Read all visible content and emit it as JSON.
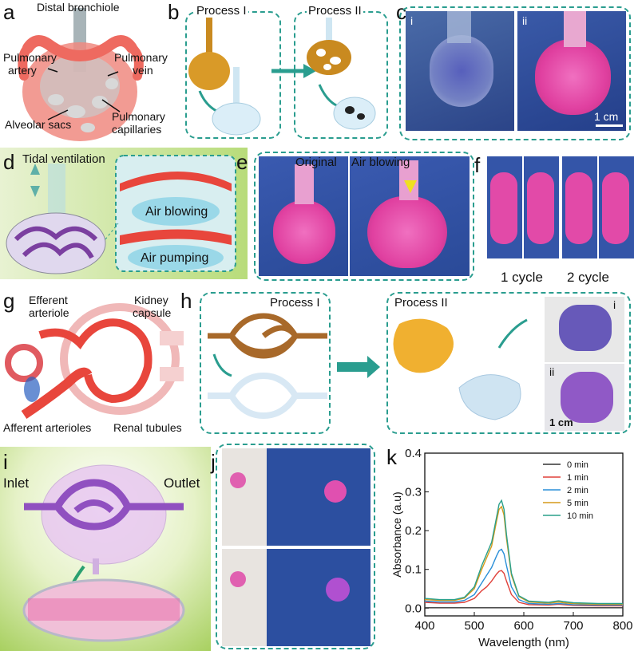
{
  "panels": {
    "a": {
      "letter": "a",
      "labels": {
        "distal_bronchiole": "Distal bronchiole",
        "pulmonary_artery_1": "Pulmonary",
        "pulmonary_artery_2": "artery",
        "pulmonary_vein_1": "Pulmonary",
        "pulmonary_vein_2": "vein",
        "alveolar_sacs": "Alveolar sacs",
        "pulmonary_capillaries_1": "Pulmonary",
        "pulmonary_capillaries_2": "capillaries"
      }
    },
    "b": {
      "letter": "b",
      "process_1": "Process I",
      "process_2": "Process II"
    },
    "c": {
      "letter": "c",
      "sub_i": "i",
      "sub_ii": "ii",
      "scale": "1 cm"
    },
    "d": {
      "letter": "d",
      "tidal": "Tidal ventilation",
      "air_blowing": "Air blowing",
      "air_pumping": "Air pumping"
    },
    "e": {
      "letter": "e",
      "original": "Original",
      "air_blowing": "Air blowing"
    },
    "f": {
      "letter": "f",
      "cycle_1": "1 cycle",
      "cycle_2": "2 cycle"
    },
    "g": {
      "letter": "g",
      "labels": {
        "efferent_1": "Efferent",
        "efferent_2": "arteriole",
        "kidney_1": "Kidney",
        "kidney_2": "capsule",
        "afferent": "Afferent arterioles",
        "renal": "Renal tubules"
      }
    },
    "h": {
      "letter": "h",
      "process_1": "Process I",
      "process_2": "Process II",
      "sub_i": "i",
      "sub_ii": "ii",
      "scale": "1 cm"
    },
    "i": {
      "letter": "i",
      "inlet": "Inlet",
      "outlet": "Outlet"
    },
    "j": {
      "letter": "j"
    },
    "k": {
      "letter": "k"
    }
  },
  "colors": {
    "teal": "#2a9d8f",
    "pink": "#e0358f",
    "purple": "#7b3fa0",
    "blue_bg": "#2f4fb0",
    "red": "#e8463c",
    "brown": "#a8692a"
  },
  "chart_data": {
    "type": "line",
    "xlabel": "Wavelength (nm)",
    "ylabel": "Absorbance (a.u)",
    "xlim": [
      400,
      800
    ],
    "ylim": [
      -0.02,
      0.4
    ],
    "xticks": [
      400,
      500,
      600,
      700,
      800
    ],
    "yticks": [
      0.0,
      0.1,
      0.2,
      0.3,
      0.4
    ],
    "legend_position": "top-right",
    "x": [
      400,
      430,
      460,
      480,
      500,
      515,
      525,
      535,
      545,
      550,
      555,
      560,
      565,
      575,
      590,
      610,
      650,
      670,
      680,
      700,
      750,
      800
    ],
    "series": [
      {
        "name": "0 min",
        "color": "#333333",
        "values": [
          0.001,
          0.001,
          0.001,
          0.001,
          0.001,
          0.001,
          0.001,
          0.001,
          0.001,
          0.001,
          0.001,
          0.001,
          0.001,
          0.001,
          0.001,
          0.001,
          0.001,
          0.001,
          0.001,
          0.001,
          0.001,
          0.001
        ]
      },
      {
        "name": "1 min",
        "color": "#e0403a",
        "values": [
          0.015,
          0.013,
          0.013,
          0.015,
          0.025,
          0.045,
          0.055,
          0.07,
          0.088,
          0.095,
          0.097,
          0.09,
          0.07,
          0.035,
          0.015,
          0.009,
          0.008,
          0.01,
          0.009,
          0.007,
          0.006,
          0.006
        ]
      },
      {
        "name": "2 min",
        "color": "#2a8fd8",
        "values": [
          0.018,
          0.016,
          0.016,
          0.02,
          0.035,
          0.065,
          0.085,
          0.105,
          0.135,
          0.148,
          0.152,
          0.14,
          0.11,
          0.055,
          0.022,
          0.012,
          0.01,
          0.012,
          0.011,
          0.009,
          0.008,
          0.008
        ]
      },
      {
        "name": "5 min",
        "color": "#d69a1a",
        "values": [
          0.022,
          0.02,
          0.02,
          0.026,
          0.05,
          0.1,
          0.13,
          0.16,
          0.225,
          0.255,
          0.262,
          0.24,
          0.18,
          0.085,
          0.03,
          0.016,
          0.013,
          0.016,
          0.014,
          0.012,
          0.01,
          0.01
        ]
      },
      {
        "name": "10 min",
        "color": "#2aa08a",
        "values": [
          0.025,
          0.022,
          0.022,
          0.028,
          0.055,
          0.11,
          0.14,
          0.17,
          0.235,
          0.268,
          0.278,
          0.255,
          0.19,
          0.09,
          0.032,
          0.018,
          0.015,
          0.019,
          0.017,
          0.014,
          0.012,
          0.012
        ]
      }
    ]
  }
}
